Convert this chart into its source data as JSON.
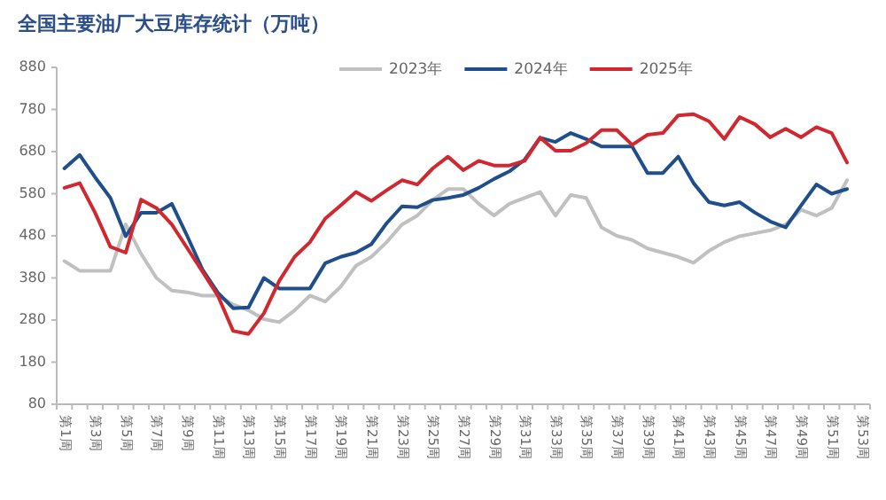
{
  "chart_data": {
    "type": "line",
    "title": "全国主要油厂大豆库存统计（万吨）",
    "categories": [
      "第1周",
      null,
      "第3周",
      null,
      "第5周",
      null,
      "第7周",
      null,
      "第9周",
      null,
      "第11周",
      null,
      "第13周",
      null,
      "第15周",
      null,
      "第17周",
      null,
      "第19周",
      null,
      "第21周",
      null,
      "第23周",
      null,
      "第25周",
      null,
      "第27周",
      null,
      "第29周",
      null,
      "第31周",
      null,
      "第33周",
      null,
      "第35周",
      null,
      "第37周",
      null,
      "第39周",
      null,
      "第41周",
      null,
      "第43周",
      null,
      "第45周",
      null,
      "第47周",
      null,
      "第49周",
      null,
      "第51周",
      null,
      "第53周"
    ],
    "series": [
      {
        "name": "2023年",
        "color": "#c0c0c0",
        "values": [
          420,
          397,
          397,
          397,
          507,
          437,
          380,
          350,
          346,
          338,
          338,
          317,
          303,
          282,
          275,
          303,
          338,
          324,
          359,
          409,
          430,
          465,
          507,
          528,
          565,
          591,
          591,
          556,
          528,
          556,
          570,
          584,
          528,
          577,
          570,
          500,
          480,
          470,
          450,
          440,
          430,
          416,
          444,
          465,
          479,
          486,
          493,
          507,
          542,
          528,
          546,
          612,
          null
        ]
      },
      {
        "name": "2024年",
        "color": "#1f4e8c",
        "values": [
          640,
          672,
          619,
          570,
          479,
          535,
          535,
          556,
          480,
          400,
          345,
          308,
          310,
          380,
          355,
          355,
          355,
          415,
          430,
          440,
          460,
          510,
          550,
          548,
          565,
          570,
          577,
          594,
          615,
          633,
          661,
          713,
          703,
          724,
          710,
          692,
          692,
          692,
          629,
          629,
          668,
          605,
          560,
          552,
          560,
          535,
          514,
          500,
          552,
          602,
          580,
          591,
          null
        ]
      },
      {
        "name": "2025年",
        "color": "#d0282e",
        "values": [
          594,
          605,
          535,
          454,
          440,
          566,
          546,
          507,
          451,
          395,
          338,
          254,
          247,
          296,
          373,
          430,
          465,
          521,
          552,
          584,
          563,
          588,
          612,
          602,
          640,
          668,
          636,
          658,
          647,
          647,
          658,
          713,
          682,
          682,
          700,
          731,
          731,
          696,
          720,
          724,
          766,
          769,
          752,
          710,
          762,
          745,
          714,
          734,
          714,
          738,
          724,
          654,
          null
        ]
      }
    ],
    "ylim": [
      80,
      880
    ],
    "yticks": [
      80,
      180,
      280,
      380,
      480,
      580,
      680,
      780,
      880
    ],
    "legend": "top",
    "grid": false
  }
}
